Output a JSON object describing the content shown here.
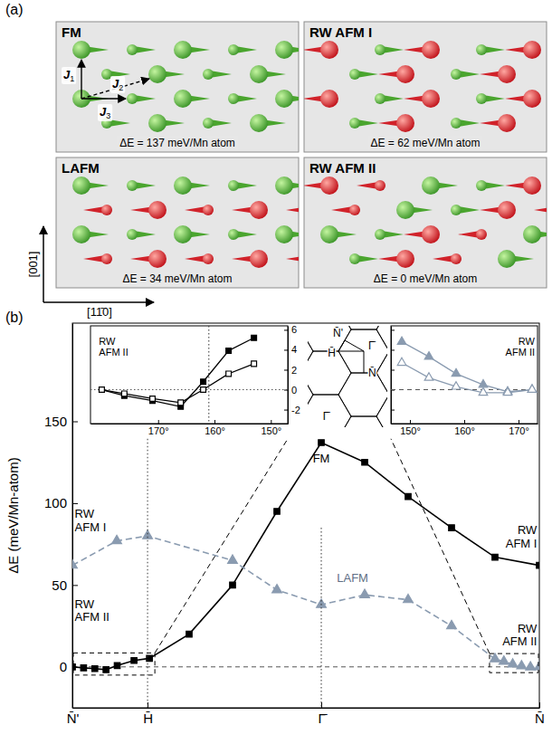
{
  "panel_labels": [
    "(a)",
    "(b)"
  ],
  "structures": {
    "items": [
      {
        "label": "FM",
        "energy": "ΔE = 137 meV/Mn atom",
        "spins": [
          [
            1,
            1,
            1,
            1,
            1
          ],
          [
            1,
            1,
            1,
            1,
            1
          ],
          [
            1,
            1,
            1,
            1,
            1
          ],
          [
            1,
            1,
            1,
            1,
            1
          ]
        ]
      },
      {
        "label": "RW AFM I",
        "energy": "ΔE = 62 meV/Mn atom",
        "spins": [
          [
            -1,
            1,
            -1,
            1,
            -1
          ],
          [
            1,
            -1,
            1,
            -1,
            1
          ],
          [
            -1,
            1,
            -1,
            1,
            -1
          ],
          [
            1,
            -1,
            1,
            -1,
            1
          ]
        ]
      },
      {
        "label": "LAFM",
        "energy": "ΔE = 34 meV/Mn atom",
        "spins": [
          [
            1,
            1,
            1,
            1,
            1
          ],
          [
            -1,
            -1,
            -1,
            -1,
            -1
          ],
          [
            1,
            1,
            1,
            1,
            1
          ],
          [
            -1,
            -1,
            -1,
            -1,
            -1
          ]
        ]
      },
      {
        "label": "RW AFM II",
        "energy": "ΔE = 0 meV/Mn atom",
        "spins": [
          [
            -1,
            -1,
            1,
            1,
            -1
          ],
          [
            -1,
            1,
            1,
            -1,
            -1
          ],
          [
            1,
            1,
            -1,
            -1,
            1
          ],
          [
            1,
            -1,
            -1,
            1,
            1
          ]
        ]
      }
    ],
    "exchange_labels": [
      "J1",
      "J2",
      "J3"
    ],
    "directions": [
      "[001]",
      "[11̄0]"
    ]
  },
  "chart_data": [
    {
      "type": "line",
      "xlim": [
        0,
        1
      ],
      "xticks": [
        {
          "value": 0,
          "label": "N̄'"
        },
        {
          "value": 0.161,
          "label": "H̄"
        },
        {
          "value": 0.533,
          "label": "Γ̄"
        },
        {
          "value": 1,
          "label": "N̄"
        }
      ],
      "ylim": [
        -25,
        210
      ],
      "yticks": [
        0,
        50,
        100,
        150
      ],
      "ylabel": "ΔE (meV/Mn-atom)",
      "grid": true,
      "series": [
        {
          "color": "#000000",
          "marker": "square",
          "line_style": "solid",
          "x": [
            0,
            0.024,
            0.048,
            0.072,
            0.096,
            0.132,
            0.165,
            0.25,
            0.343,
            0.438,
            0.533,
            0.626,
            0.719,
            0.812,
            0.905,
            1
          ],
          "values": [
            0,
            -0.6,
            -1.1,
            -1.7,
            0.8,
            3.9,
            5.2,
            20,
            50,
            95,
            137,
            125,
            104,
            85,
            67,
            62
          ]
        },
        {
          "color": "#8a9bb0",
          "marker": "triangle",
          "line_style": "dashed",
          "x": [
            0,
            0.095,
            0.161,
            0.343,
            0.438,
            0.533,
            0.626,
            0.719,
            0.812,
            0.905,
            0.924,
            0.943,
            0.962,
            0.981,
            1
          ],
          "values": [
            62,
            77,
            80,
            65,
            47,
            38,
            44,
            41,
            25,
            4.8,
            3.3,
            1.6,
            0.5,
            -0.2,
            0
          ]
        }
      ],
      "annotations": [
        {
          "text": "RW AFM II",
          "x": 0.005,
          "y": 28
        },
        {
          "text": "RW AFM I",
          "x": 0.005,
          "y": 83
        },
        {
          "text": "FM",
          "x": 0.533,
          "y": 125
        },
        {
          "text": "LAFM",
          "x": 0.6,
          "y": 52
        },
        {
          "text": "RW AFM I",
          "x": 0.995,
          "y": 73
        },
        {
          "text": "RW AFM II",
          "x": 0.995,
          "y": 13
        }
      ]
    },
    {
      "type": "line",
      "xlim": [
        182,
        147
      ],
      "xticks": [
        {
          "value": 170,
          "label": "170°"
        },
        {
          "value": 160,
          "label": "160°"
        },
        {
          "value": 150,
          "label": "150°"
        }
      ],
      "ylim": [
        -3.4,
        6.4
      ],
      "yticks": [
        -2,
        0,
        2,
        4,
        6
      ],
      "reference_lines": [
        161
      ],
      "series": [
        {
          "color": "#000000",
          "marker": "square",
          "line_style": "solid",
          "x": [
            180,
            176,
            171,
            166,
            162,
            157.5,
            153
          ],
          "values": [
            0,
            -0.6,
            -1.1,
            -1.7,
            0.8,
            3.9,
            5.2
          ]
        },
        {
          "color": "#000000",
          "marker": "square-open",
          "line_style": "solid",
          "x": [
            180,
            176,
            171,
            166,
            162,
            157.5,
            153
          ],
          "values": [
            0,
            -0.4,
            -0.9,
            -1.3,
            0,
            1.6,
            2.6
          ]
        }
      ],
      "annotations": [
        {
          "text": "RW AFM II",
          "x": 180.5,
          "y": 3.4
        }
      ]
    },
    {
      "type": "line",
      "xlim": [
        146.5,
        173.5
      ],
      "xticks": [
        {
          "value": 150,
          "label": "150°"
        },
        {
          "value": 160,
          "label": "160°"
        },
        {
          "value": 170,
          "label": "170°"
        }
      ],
      "ylim": [
        -3.4,
        6.4
      ],
      "yticks": [
        -2,
        0,
        2,
        4,
        6
      ],
      "tick_labels": "x",
      "series": [
        {
          "color": "#8a9bb0",
          "marker": "triangle",
          "line_style": "solid",
          "x": [
            148.5,
            153.5,
            158.5,
            163.5,
            168,
            172.5
          ],
          "values": [
            4.8,
            3.3,
            1.6,
            0.5,
            -0.2,
            0
          ]
        },
        {
          "color": "#8a9bb0",
          "marker": "triangle-open",
          "line_style": "solid",
          "x": [
            148.5,
            153.5,
            158.5,
            163.5,
            168,
            172.5
          ],
          "values": [
            2.7,
            1.2,
            0.3,
            -0.3,
            -0.3,
            0
          ]
        }
      ],
      "annotations": [
        {
          "text": "RW AFM II",
          "x": 173,
          "y": 3.4
        }
      ]
    }
  ],
  "brillouin_zone": {
    "labels": [
      "N̄'",
      "H̄",
      "Γ̄",
      "N̄",
      "Γ̄"
    ]
  }
}
